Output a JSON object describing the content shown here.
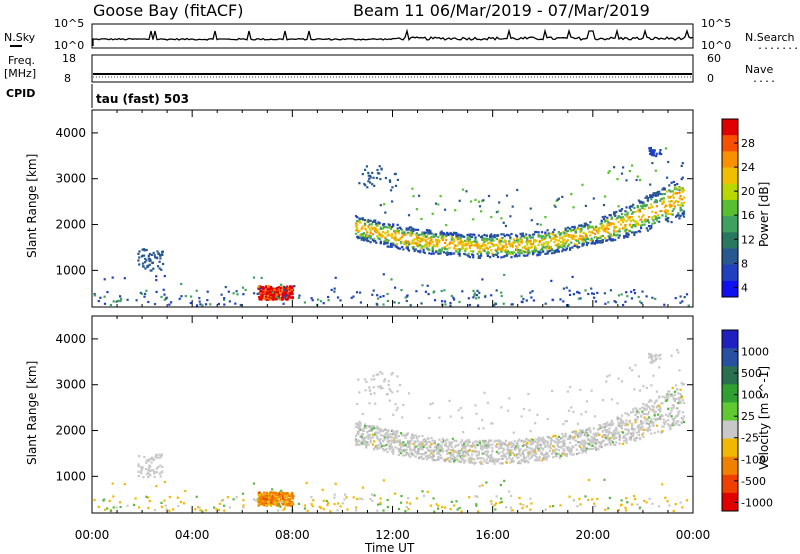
{
  "header": {
    "station": "Goose Bay (fitACF)",
    "beam_date": "Beam 11  06/Mar/2019 - 07/Mar/2019"
  },
  "summary": {
    "nsky_label": "N.Sky",
    "nsearch_label": "N.Search",
    "freq_label_top": "Freq.",
    "freq_label_bottom": "[MHz]",
    "nave_label": "Nave",
    "cpid_label": "CPID",
    "cpid_value": "tau (fast) 503",
    "noise_ticks": [
      "10^5",
      "10^0"
    ],
    "noise_ticks_right": [
      "10^5",
      "10^0"
    ],
    "freq_ticks": [
      "18",
      "8"
    ],
    "nave_ticks": [
      "60",
      "0"
    ]
  },
  "colorbars": {
    "power": {
      "label": "Power [dB]",
      "ticks": [
        "28",
        "24",
        "20",
        "16",
        "12",
        "8",
        "4"
      ],
      "colors": [
        "#e00000",
        "#f85000",
        "#f89000",
        "#f0c000",
        "#b8d800",
        "#58c030",
        "#40a060",
        "#287860",
        "#285890",
        "#2040c0",
        "#1010f0"
      ]
    },
    "velocity": {
      "label": "Velocity [m s^-1]",
      "ticks": [
        "1000",
        "500",
        "100",
        "25",
        "-25",
        "-100",
        "-500",
        "-1000"
      ],
      "colors": [
        "#2020c0",
        "#2850a0",
        "#287050",
        "#30a030",
        "#60c830",
        "#c8c8c8",
        "#f0b800",
        "#f08000",
        "#f04000",
        "#e00000"
      ]
    }
  },
  "chart_data": [
    {
      "type": "heatmap",
      "title": "Power",
      "ylabel": "Slant Range [km]",
      "xlabel": "",
      "ylim": [
        200,
        4500
      ],
      "yticks": [
        1000,
        2000,
        3000,
        4000
      ],
      "xticks": [
        "00:00",
        "04:00",
        "08:00",
        "12:00",
        "16:00",
        "20:00",
        "00:00"
      ],
      "regions": [
        {
          "name": "main-band",
          "t_start": 10.5,
          "t_end": 23.5,
          "center_km": 1700,
          "note": "arc centered ~1550 km at 16:00"
        },
        {
          "name": "evening-patch",
          "t_start": 6.5,
          "t_end": 8.0,
          "center_km": 500,
          "peak_db": 30
        }
      ]
    },
    {
      "type": "heatmap",
      "title": "Velocity",
      "ylabel": "Slant Range [km]",
      "xlabel": "Time UT",
      "ylim": [
        200,
        4500
      ],
      "yticks": [
        1000,
        2000,
        3000,
        4000
      ],
      "xticks": [
        "00:00",
        "04:00",
        "08:00",
        "12:00",
        "16:00",
        "20:00",
        "00:00"
      ],
      "regions": [
        {
          "name": "main-band",
          "t_start": 10.5,
          "t_end": 23.5,
          "center_km": 1700,
          "velocity": "near zero"
        },
        {
          "name": "evening-patch",
          "t_start": 6.5,
          "t_end": 8.0,
          "center_km": 500,
          "velocity": "-100 to -500"
        }
      ]
    }
  ]
}
